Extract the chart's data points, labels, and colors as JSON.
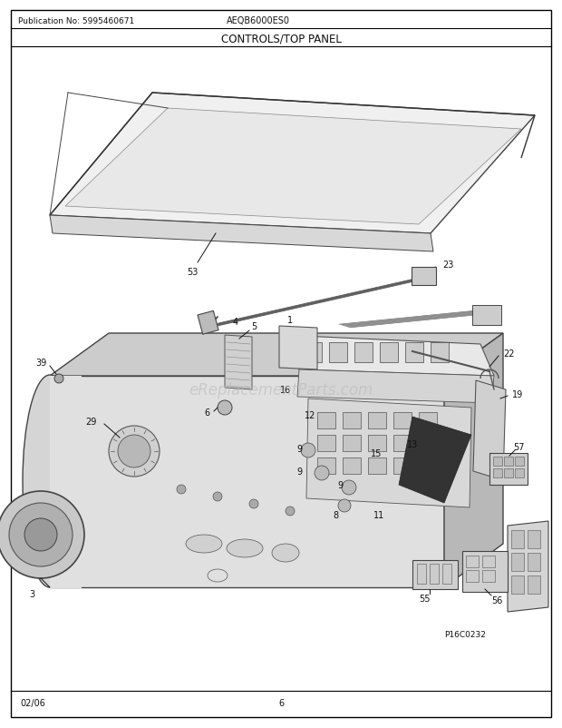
{
  "title_center": "CONTROLS/TOP PANEL",
  "pub_no_label": "Publication No: 5995460671",
  "model_label": "AEQB6000ES0",
  "date_label": "02/06",
  "page_label": "6",
  "diagram_credit": "P16C0232",
  "watermark": "eReplacementParts.com",
  "bg_color": "#ffffff",
  "border_color": "#000000",
  "text_color": "#111111",
  "fig_width": 6.2,
  "fig_height": 8.03
}
